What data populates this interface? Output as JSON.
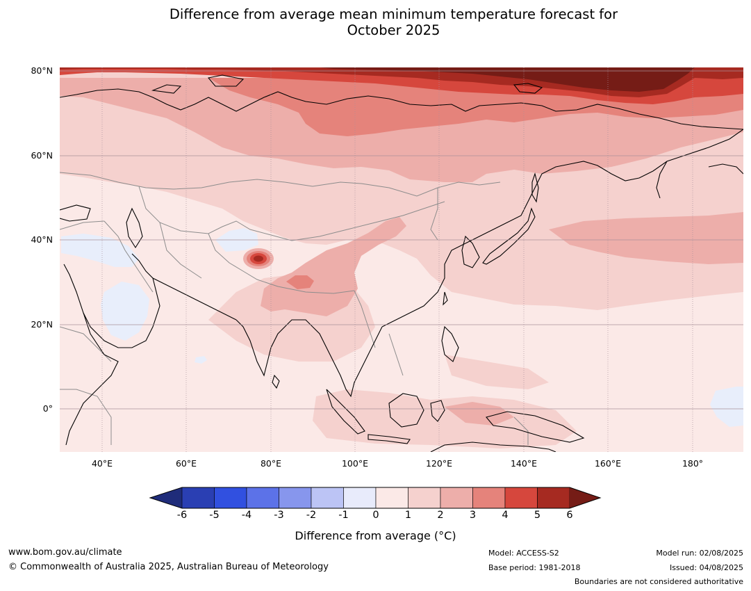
{
  "title": {
    "line1": "Difference from average mean minimum temperature forecast for",
    "line2": "October 2025"
  },
  "map": {
    "lat_labels": [
      "80°N",
      "60°N",
      "40°N",
      "20°N",
      "0°"
    ],
    "lon_labels": [
      "40°E",
      "60°E",
      "80°E",
      "100°E",
      "120°E",
      "140°E",
      "160°E",
      "180°"
    ],
    "extent": {
      "lon_min": 30,
      "lon_max": 191,
      "lat_min": -10,
      "lat_max": 81
    },
    "colors": {
      "ocean_base": "#fbe9e7",
      "level_2": "#f5d1ce",
      "level_3": "#edaeaa",
      "level_4": "#e5837b",
      "level_5": "#d6473d",
      "level_6": "#a62a21",
      "level_max": "#751c16",
      "cool": "#e8eefb",
      "coastline": "#000000",
      "boundary": "#8c8c8c",
      "grid": "#a8909a"
    }
  },
  "colorbar": {
    "ticks": [
      "-6",
      "-5",
      "-4",
      "-3",
      "-2",
      "-1",
      "0",
      "1",
      "2",
      "3",
      "4",
      "5",
      "6"
    ],
    "colors": [
      "#1f2c7a",
      "#2a3fb3",
      "#3150e0",
      "#5c72e8",
      "#8796ed",
      "#bcc4f5",
      "#e8ebfb",
      "#fbe9e7",
      "#f5d1ce",
      "#edaeaa",
      "#e5837b",
      "#d6473d",
      "#a62a21",
      "#751c16"
    ],
    "label": "Difference from average (°C)"
  },
  "footer": {
    "website": "www.bom.gov.au/climate",
    "copyright": "© Commonwealth of Australia 2025, Australian Bureau of Meteorology",
    "model": "Model: ACCESS-S2",
    "base_period": "Base period: 1981-2018",
    "model_run": "Model run: 02/08/2025",
    "issued": "Issued: 04/08/2025",
    "disclaimer": "Boundaries are not considered authoritative"
  }
}
